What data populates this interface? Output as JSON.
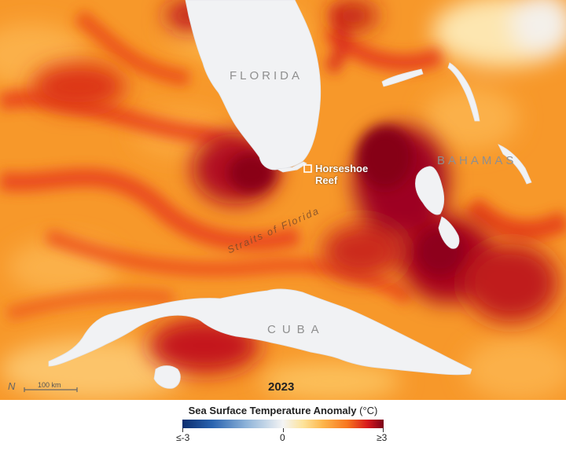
{
  "map": {
    "labels": {
      "florida": "FLORIDA",
      "bahamas": "BAHAMAS",
      "cuba": "CUBA",
      "straits": "Straits of Florida",
      "reef": "Horseshoe\nReef",
      "year": "2023"
    },
    "scale_bar": "100 km",
    "north_glyph": "N",
    "colors": {
      "land": "#f1f2f4",
      "base_ocean": "#f79a2c",
      "hot": "#a9001f",
      "warm": "#e53a14"
    }
  },
  "legend": {
    "title_main": "Sea Surface Temperature Anomaly",
    "title_unit": "(°C)",
    "min_label": "≤-3",
    "mid_label": "0",
    "max_label": "≥3",
    "range": [
      -3,
      3
    ]
  }
}
